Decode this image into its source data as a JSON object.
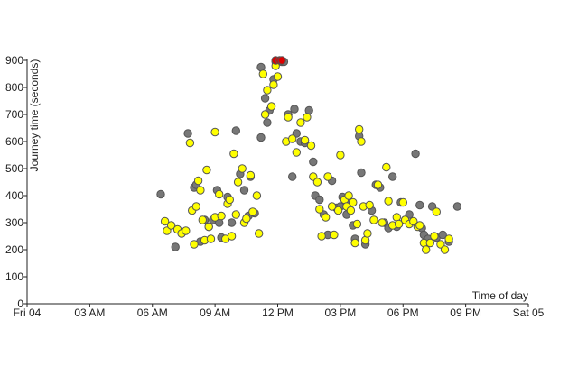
{
  "chart_data": {
    "type": "scatter",
    "title": "",
    "xlabel": "Time of day",
    "ylabel": "Journey time (seconds)",
    "xlim": [
      0,
      24
    ],
    "ylim": [
      0,
      900
    ],
    "x_ticks": [
      {
        "value": 0,
        "label": "Fri 04"
      },
      {
        "value": 3,
        "label": "03 AM"
      },
      {
        "value": 6,
        "label": "06 AM"
      },
      {
        "value": 9,
        "label": "09 AM"
      },
      {
        "value": 12,
        "label": "12 PM"
      },
      {
        "value": 15,
        "label": "03 PM"
      },
      {
        "value": 18,
        "label": "06 PM"
      },
      {
        "value": 21,
        "label": "09 PM"
      },
      {
        "value": 24,
        "label": "Sat 05"
      }
    ],
    "y_ticks": [
      0,
      100,
      200,
      300,
      400,
      500,
      600,
      700,
      800,
      900
    ],
    "colors": {
      "yellow": "#ffff00",
      "grey": "#777777",
      "red": "#dd0000",
      "outline": "#555555"
    },
    "series": [
      {
        "name": "grey",
        "color": "#777777",
        "points": [
          [
            6.4,
            405
          ],
          [
            7.1,
            210
          ],
          [
            7.4,
            265
          ],
          [
            7.7,
            630
          ],
          [
            8.0,
            430
          ],
          [
            8.1,
            440
          ],
          [
            8.3,
            230
          ],
          [
            8.5,
            310
          ],
          [
            8.7,
            285
          ],
          [
            8.9,
            310
          ],
          [
            9.1,
            420
          ],
          [
            9.2,
            300
          ],
          [
            9.3,
            245
          ],
          [
            9.6,
            395
          ],
          [
            9.8,
            300
          ],
          [
            10.0,
            640
          ],
          [
            10.2,
            480
          ],
          [
            10.4,
            420
          ],
          [
            10.6,
            325
          ],
          [
            10.7,
            470
          ],
          [
            10.9,
            335
          ],
          [
            11.2,
            615
          ],
          [
            11.2,
            875
          ],
          [
            11.4,
            760
          ],
          [
            11.5,
            670
          ],
          [
            11.6,
            715
          ],
          [
            11.8,
            830
          ],
          [
            11.9,
            895
          ],
          [
            12.2,
            895
          ],
          [
            12.3,
            895
          ],
          [
            12.5,
            700
          ],
          [
            12.7,
            470
          ],
          [
            12.8,
            720
          ],
          [
            12.9,
            630
          ],
          [
            13.1,
            600
          ],
          [
            13.3,
            595
          ],
          [
            13.5,
            715
          ],
          [
            13.7,
            525
          ],
          [
            13.8,
            400
          ],
          [
            14.0,
            385
          ],
          [
            14.2,
            330
          ],
          [
            14.4,
            255
          ],
          [
            14.6,
            455
          ],
          [
            14.8,
            355
          ],
          [
            15.0,
            360
          ],
          [
            15.1,
            395
          ],
          [
            15.3,
            330
          ],
          [
            15.5,
            375
          ],
          [
            15.6,
            290
          ],
          [
            15.7,
            240
          ],
          [
            15.9,
            620
          ],
          [
            16.0,
            485
          ],
          [
            16.2,
            220
          ],
          [
            16.5,
            345
          ],
          [
            16.7,
            440
          ],
          [
            16.9,
            430
          ],
          [
            17.1,
            300
          ],
          [
            17.3,
            280
          ],
          [
            17.5,
            470
          ],
          [
            17.7,
            285
          ],
          [
            17.9,
            375
          ],
          [
            18.1,
            310
          ],
          [
            18.3,
            330
          ],
          [
            18.6,
            555
          ],
          [
            18.8,
            365
          ],
          [
            18.9,
            280
          ],
          [
            19.0,
            255
          ],
          [
            19.2,
            240
          ],
          [
            19.4,
            360
          ],
          [
            19.6,
            245
          ],
          [
            19.9,
            255
          ],
          [
            20.2,
            230
          ],
          [
            20.6,
            360
          ]
        ]
      },
      {
        "name": "yellow",
        "color": "#ffff00",
        "points": [
          [
            6.6,
            305
          ],
          [
            6.7,
            270
          ],
          [
            6.9,
            290
          ],
          [
            7.2,
            275
          ],
          [
            7.4,
            260
          ],
          [
            7.6,
            270
          ],
          [
            7.8,
            595
          ],
          [
            7.9,
            345
          ],
          [
            8.0,
            220
          ],
          [
            8.1,
            360
          ],
          [
            8.2,
            455
          ],
          [
            8.3,
            420
          ],
          [
            8.4,
            310
          ],
          [
            8.5,
            235
          ],
          [
            8.6,
            495
          ],
          [
            8.7,
            285
          ],
          [
            8.8,
            240
          ],
          [
            9.0,
            635
          ],
          [
            9.0,
            320
          ],
          [
            9.2,
            405
          ],
          [
            9.3,
            325
          ],
          [
            9.5,
            240
          ],
          [
            9.6,
            370
          ],
          [
            9.7,
            385
          ],
          [
            9.8,
            250
          ],
          [
            9.9,
            555
          ],
          [
            10.0,
            330
          ],
          [
            10.1,
            450
          ],
          [
            10.3,
            500
          ],
          [
            10.4,
            300
          ],
          [
            10.5,
            315
          ],
          [
            10.7,
            475
          ],
          [
            10.8,
            340
          ],
          [
            11.0,
            400
          ],
          [
            11.1,
            260
          ],
          [
            11.3,
            850
          ],
          [
            11.4,
            700
          ],
          [
            11.5,
            790
          ],
          [
            11.7,
            730
          ],
          [
            11.8,
            810
          ],
          [
            11.9,
            880
          ],
          [
            12.0,
            840
          ],
          [
            12.4,
            600
          ],
          [
            12.5,
            690
          ],
          [
            12.7,
            610
          ],
          [
            12.9,
            560
          ],
          [
            13.1,
            670
          ],
          [
            13.3,
            605
          ],
          [
            13.4,
            690
          ],
          [
            13.6,
            585
          ],
          [
            13.7,
            470
          ],
          [
            13.9,
            450
          ],
          [
            14.0,
            350
          ],
          [
            14.1,
            250
          ],
          [
            14.3,
            320
          ],
          [
            14.4,
            470
          ],
          [
            14.6,
            360
          ],
          [
            14.7,
            255
          ],
          [
            14.9,
            345
          ],
          [
            15.0,
            550
          ],
          [
            15.2,
            385
          ],
          [
            15.3,
            360
          ],
          [
            15.4,
            400
          ],
          [
            15.5,
            345
          ],
          [
            15.6,
            375
          ],
          [
            15.7,
            225
          ],
          [
            15.8,
            295
          ],
          [
            15.9,
            645
          ],
          [
            16.0,
            600
          ],
          [
            16.1,
            360
          ],
          [
            16.2,
            235
          ],
          [
            16.3,
            260
          ],
          [
            16.4,
            365
          ],
          [
            16.6,
            310
          ],
          [
            16.8,
            440
          ],
          [
            17.0,
            300
          ],
          [
            17.2,
            505
          ],
          [
            17.3,
            380
          ],
          [
            17.5,
            290
          ],
          [
            17.7,
            320
          ],
          [
            17.8,
            295
          ],
          [
            18.0,
            375
          ],
          [
            18.1,
            310
          ],
          [
            18.3,
            295
          ],
          [
            18.5,
            305
          ],
          [
            18.7,
            285
          ],
          [
            18.8,
            290
          ],
          [
            19.0,
            225
          ],
          [
            19.1,
            200
          ],
          [
            19.3,
            225
          ],
          [
            19.5,
            250
          ],
          [
            19.6,
            340
          ],
          [
            19.8,
            220
          ],
          [
            20.0,
            200
          ],
          [
            20.2,
            240
          ]
        ]
      },
      {
        "name": "red",
        "color": "#dd0000",
        "points": [
          [
            11.9,
            900
          ],
          [
            12.1,
            900
          ],
          [
            12.2,
            900
          ]
        ]
      }
    ]
  }
}
